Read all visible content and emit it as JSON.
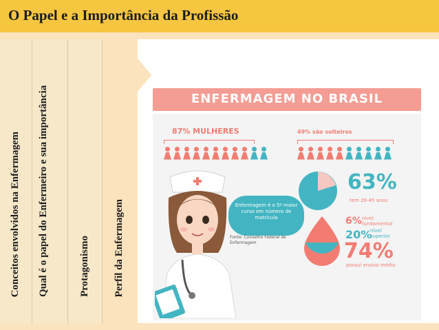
{
  "slide": {
    "title": "O Papel e a Importância da Profissão"
  },
  "tabs": [
    {
      "label": "Conceitos envolvidos na Enfermagem"
    },
    {
      "label": "Qual é o papel do Enfermeiro e sua importância"
    },
    {
      "label": "Protagonismo"
    },
    {
      "label": "Perfil da Enfermagem"
    }
  ],
  "infographic": {
    "banner": "ENFERMAGEM NO BRASIL",
    "women_label": "87% MULHERES",
    "single_label": "49% são solteiros",
    "age_percent": "63%",
    "age_label": "tem 26-45 anos",
    "fundamental_percent": "6%",
    "fundamental_label": "nível fundamental",
    "superior_percent": "20%",
    "superior_label": "nível superior",
    "medio_percent": "74%",
    "medio_label": "possui ensino médio",
    "bubble_text": "Enfermagem é o 5º maior curso em número de matrícula",
    "source_text": "Fonte: Conselho Federal de Enfermagem",
    "colors": {
      "pink": "#f27c72",
      "teal": "#43b5c2"
    }
  }
}
